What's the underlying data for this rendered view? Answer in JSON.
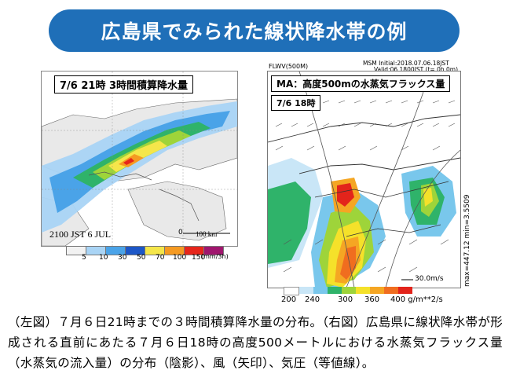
{
  "title": "広島県でみられた線状降水帯の例",
  "left": {
    "label": "7/6  21時  3時間積算降水量",
    "stamp": "2100 JST  6 JUL",
    "zero": "0",
    "scale": "100 km",
    "legend_values": [
      "5",
      "10",
      "30",
      "50",
      "70",
      "100",
      "150"
    ],
    "legend_unit": "(mm/3h)",
    "legend_colors": [
      "#f2f2f2",
      "#a9d4f5",
      "#4aa3e8",
      "#1d57c7",
      "#f5e64a",
      "#f59a22",
      "#e6261b",
      "#a0166e"
    ]
  },
  "right": {
    "label": "MA：高度500mの水蒸気フラックス量",
    "date": "7/6  18時",
    "model_id": "FLWV(500M)",
    "init": "MSM Initial:2018.07.06.18JST",
    "valid": "Valid:06.1800JST (t= 0h 0m)",
    "side_label": "max=447.12  min=3.5509",
    "vector_label": "30.0m/s",
    "legend_values": [
      "200",
      "240",
      "300",
      "360",
      "400 g/m**2/s"
    ],
    "legend_colors": [
      "#ffffff",
      "#c9e6f7",
      "#79c7ec",
      "#2fb36a",
      "#9ed43a",
      "#f5e12a",
      "#f5a623",
      "#f06d1f",
      "#e3241b"
    ]
  },
  "caption": "（左図）７月６日21時までの３時間積算降水量の分布。（右図）広島県に線状降水帯が形成される直前にあたる７月６日18時の高度500メートルにおける水蒸気フラックス量（水蒸気の流入量）の分布（陰影）、風（矢印）、気圧（等値線）。"
}
